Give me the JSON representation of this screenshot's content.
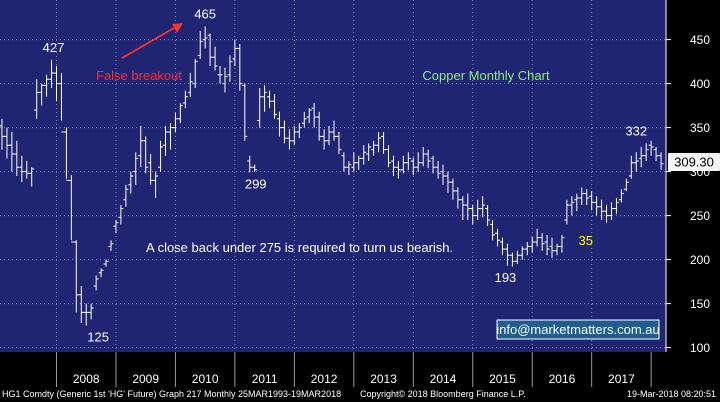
{
  "colors": {
    "background": "#1f2572",
    "plot_background": "#1f2572",
    "grid": "#7f86c2",
    "bars": "#ffffff",
    "axis_panel": "#000000",
    "axis_text": "#ffffff",
    "last_price_badge_bg": "#f4f4f4",
    "last_price_badge_text": "#000000",
    "false_breakout_text": "#ff2a2a",
    "arrow": "#ff3030",
    "title_text": "#8cf07a",
    "label_yellow": "#ffff00",
    "label_white": "#ffffff",
    "email_box_bg": "#1f5d8f",
    "email_box_border": "#ffffff"
  },
  "chart_data": {
    "type": "ohlc",
    "title": "Copper Monthly Chart",
    "y_axis": {
      "ticks": [
        100,
        150,
        200,
        250,
        300,
        350,
        400,
        450
      ],
      "range": [
        95,
        495
      ],
      "side": "right",
      "grid": true
    },
    "x_axis": {
      "labels": [
        "2008",
        "2009",
        "2010",
        "2011",
        "2012",
        "2013",
        "2014",
        "2015",
        "2016",
        "2017"
      ],
      "range": [
        2007.05,
        2018.25
      ],
      "grid": true
    },
    "last_price": "309.30",
    "last_price_value": 309.3,
    "annotations": {
      "false_breakout": "False breakout",
      "comment": "A close back under 275 is required to turn us bearish.",
      "email": "info@marketmatters.com.au",
      "labels": [
        {
          "text": "427",
          "x": 2007.95,
          "y": 427,
          "color": "white"
        },
        {
          "text": "465",
          "x": 2010.5,
          "y": 465,
          "color": "white"
        },
        {
          "text": "299",
          "x": 2011.35,
          "y": 299,
          "color": "white"
        },
        {
          "text": "125",
          "x": 2008.7,
          "y": 125,
          "color": "white"
        },
        {
          "text": "193",
          "x": 2015.55,
          "y": 193,
          "color": "white"
        },
        {
          "text": "35",
          "x": 2016.9,
          "y": 235,
          "color": "yellow"
        },
        {
          "text": "332",
          "x": 2017.75,
          "y": 332,
          "color": "white"
        }
      ]
    },
    "bars_x": [
      2007.0,
      2007.083,
      2007.167,
      2007.25,
      2007.333,
      2007.417,
      2007.5,
      2007.583,
      2007.667,
      2007.75,
      2007.833,
      2007.917,
      2008.0,
      2008.083,
      2008.167,
      2008.25,
      2008.333,
      2008.417,
      2008.5,
      2008.583,
      2008.667,
      2008.75,
      2008.833,
      2008.917,
      2009.0,
      2009.083,
      2009.167,
      2009.25,
      2009.333,
      2009.417,
      2009.5,
      2009.583,
      2009.667,
      2009.75,
      2009.833,
      2009.917,
      2010.0,
      2010.083,
      2010.167,
      2010.25,
      2010.333,
      2010.417,
      2010.5,
      2010.583,
      2010.667,
      2010.75,
      2010.833,
      2010.917,
      2011.0,
      2011.083,
      2011.167,
      2011.25,
      2011.333,
      2011.417,
      2011.5,
      2011.583,
      2011.667,
      2011.75,
      2011.833,
      2011.917,
      2012.0,
      2012.083,
      2012.167,
      2012.25,
      2012.333,
      2012.417,
      2012.5,
      2012.583,
      2012.667,
      2012.75,
      2012.833,
      2012.917,
      2013.0,
      2013.083,
      2013.167,
      2013.25,
      2013.333,
      2013.417,
      2013.5,
      2013.583,
      2013.667,
      2013.75,
      2013.833,
      2013.917,
      2014.0,
      2014.083,
      2014.167,
      2014.25,
      2014.333,
      2014.417,
      2014.5,
      2014.583,
      2014.667,
      2014.75,
      2014.833,
      2014.917,
      2015.0,
      2015.083,
      2015.167,
      2015.25,
      2015.333,
      2015.417,
      2015.5,
      2015.583,
      2015.667,
      2015.75,
      2015.833,
      2015.917,
      2016.0,
      2016.083,
      2016.167,
      2016.25,
      2016.333,
      2016.417,
      2016.5,
      2016.583,
      2016.667,
      2016.75,
      2016.833,
      2016.917,
      2017.0,
      2017.083,
      2017.167,
      2017.25,
      2017.333,
      2017.417,
      2017.5,
      2017.583,
      2017.667,
      2017.75,
      2017.833,
      2017.917,
      2018.0,
      2018.083,
      2018.167
    ],
    "bars_high": [
      385,
      360,
      350,
      345,
      335,
      318,
      312,
      305,
      405,
      400,
      410,
      427,
      420,
      412,
      350,
      296,
      222,
      170,
      150,
      150,
      182,
      190,
      200,
      222,
      245,
      262,
      285,
      300,
      322,
      352,
      340,
      320,
      300,
      335,
      352,
      355,
      367,
      378,
      392,
      412,
      428,
      460,
      465,
      457,
      442,
      420,
      418,
      432,
      450,
      445,
      400,
      318,
      308,
      395,
      398,
      392,
      388,
      368,
      358,
      348,
      352,
      355,
      368,
      372,
      378,
      368,
      348,
      352,
      358,
      345,
      322,
      312,
      322,
      318,
      330,
      332,
      335,
      345,
      345,
      330,
      318,
      312,
      318,
      322,
      316,
      322,
      328,
      325,
      318,
      312,
      308,
      300,
      292,
      282,
      272,
      275,
      262,
      268,
      272,
      262,
      245,
      235,
      225,
      218,
      208,
      210,
      215,
      220,
      226,
      235,
      230,
      228,
      225,
      218,
      228,
      268,
      272,
      275,
      282,
      280,
      278,
      272,
      268,
      262,
      265,
      270,
      280,
      292,
      318,
      322,
      328,
      332,
      335,
      328,
      322
    ],
    "bars_low": [
      345,
      325,
      315,
      300,
      295,
      288,
      292,
      283,
      360,
      375,
      385,
      395,
      380,
      358,
      292,
      222,
      140,
      128,
      125,
      132,
      165,
      180,
      192,
      210,
      230,
      240,
      260,
      275,
      285,
      305,
      298,
      285,
      270,
      300,
      318,
      325,
      345,
      355,
      372,
      385,
      395,
      428,
      440,
      420,
      415,
      400,
      390,
      402,
      420,
      392,
      335,
      299,
      300,
      350,
      368,
      372,
      360,
      340,
      332,
      325,
      330,
      338,
      350,
      355,
      350,
      335,
      325,
      330,
      335,
      320,
      300,
      296,
      300,
      302,
      308,
      312,
      318,
      322,
      320,
      305,
      295,
      292,
      298,
      302,
      296,
      300,
      306,
      304,
      298,
      292,
      285,
      276,
      268,
      258,
      245,
      245,
      240,
      245,
      248,
      238,
      222,
      215,
      205,
      193,
      192,
      195,
      200,
      205,
      208,
      215,
      210,
      205,
      202,
      205,
      208,
      240,
      250,
      255,
      262,
      262,
      256,
      250,
      245,
      242,
      245,
      252,
      265,
      278,
      292,
      300,
      305,
      312,
      318,
      312,
      302
    ],
    "bars_open": [
      378,
      352,
      340,
      330,
      320,
      305,
      300,
      298,
      370,
      390,
      398,
      405,
      412,
      400,
      345,
      290,
      220,
      160,
      140,
      140,
      170,
      185,
      195,
      215,
      238,
      248,
      268,
      285,
      300,
      318,
      335,
      310,
      290,
      305,
      330,
      345,
      350,
      360,
      378,
      390,
      400,
      432,
      450,
      455,
      430,
      410,
      400,
      410,
      428,
      440,
      398,
      312,
      305,
      358,
      385,
      385,
      380,
      360,
      350,
      338,
      335,
      345,
      355,
      362,
      372,
      362,
      340,
      335,
      345,
      340,
      318,
      305,
      305,
      310,
      315,
      320,
      325,
      330,
      340,
      325,
      312,
      305,
      302,
      310,
      312,
      305,
      310,
      320,
      315,
      305,
      300,
      295,
      288,
      278,
      268,
      262,
      258,
      250,
      258,
      258,
      240,
      230,
      220,
      212,
      205,
      198,
      205,
      212,
      215,
      220,
      225,
      220,
      215,
      210,
      215,
      245,
      262,
      268,
      270,
      275,
      272,
      265,
      260,
      255,
      250,
      258,
      268,
      280,
      295,
      310,
      315,
      318,
      330,
      325,
      318
    ],
    "bars_close": [
      352,
      340,
      330,
      320,
      305,
      300,
      298,
      303,
      390,
      398,
      405,
      412,
      400,
      345,
      290,
      220,
      160,
      140,
      140,
      145,
      178,
      188,
      198,
      218,
      242,
      258,
      280,
      295,
      315,
      335,
      305,
      290,
      295,
      328,
      345,
      350,
      360,
      375,
      385,
      402,
      425,
      448,
      452,
      430,
      420,
      410,
      408,
      425,
      440,
      400,
      340,
      305,
      302,
      385,
      390,
      380,
      365,
      350,
      338,
      335,
      345,
      350,
      360,
      370,
      362,
      340,
      335,
      345,
      340,
      325,
      305,
      308,
      310,
      315,
      322,
      328,
      330,
      338,
      325,
      310,
      305,
      302,
      310,
      315,
      305,
      310,
      320,
      312,
      305,
      298,
      295,
      288,
      278,
      268,
      262,
      258,
      250,
      258,
      262,
      245,
      228,
      222,
      212,
      205,
      198,
      205,
      212,
      215,
      220,
      225,
      218,
      212,
      210,
      215,
      225,
      262,
      265,
      270,
      275,
      270,
      265,
      260,
      255,
      250,
      258,
      265,
      275,
      288,
      310,
      312,
      318,
      325,
      328,
      318,
      309
    ]
  },
  "footer": {
    "left": "HG1 Comdty (Generic 1st 'HG' Future) Graph 217  Monthly 25MAR1993-19MAR2018",
    "center": "Copyright© 2018 Bloomberg Finance L.P.",
    "right": "19-Mar-2018 08:20:51"
  }
}
